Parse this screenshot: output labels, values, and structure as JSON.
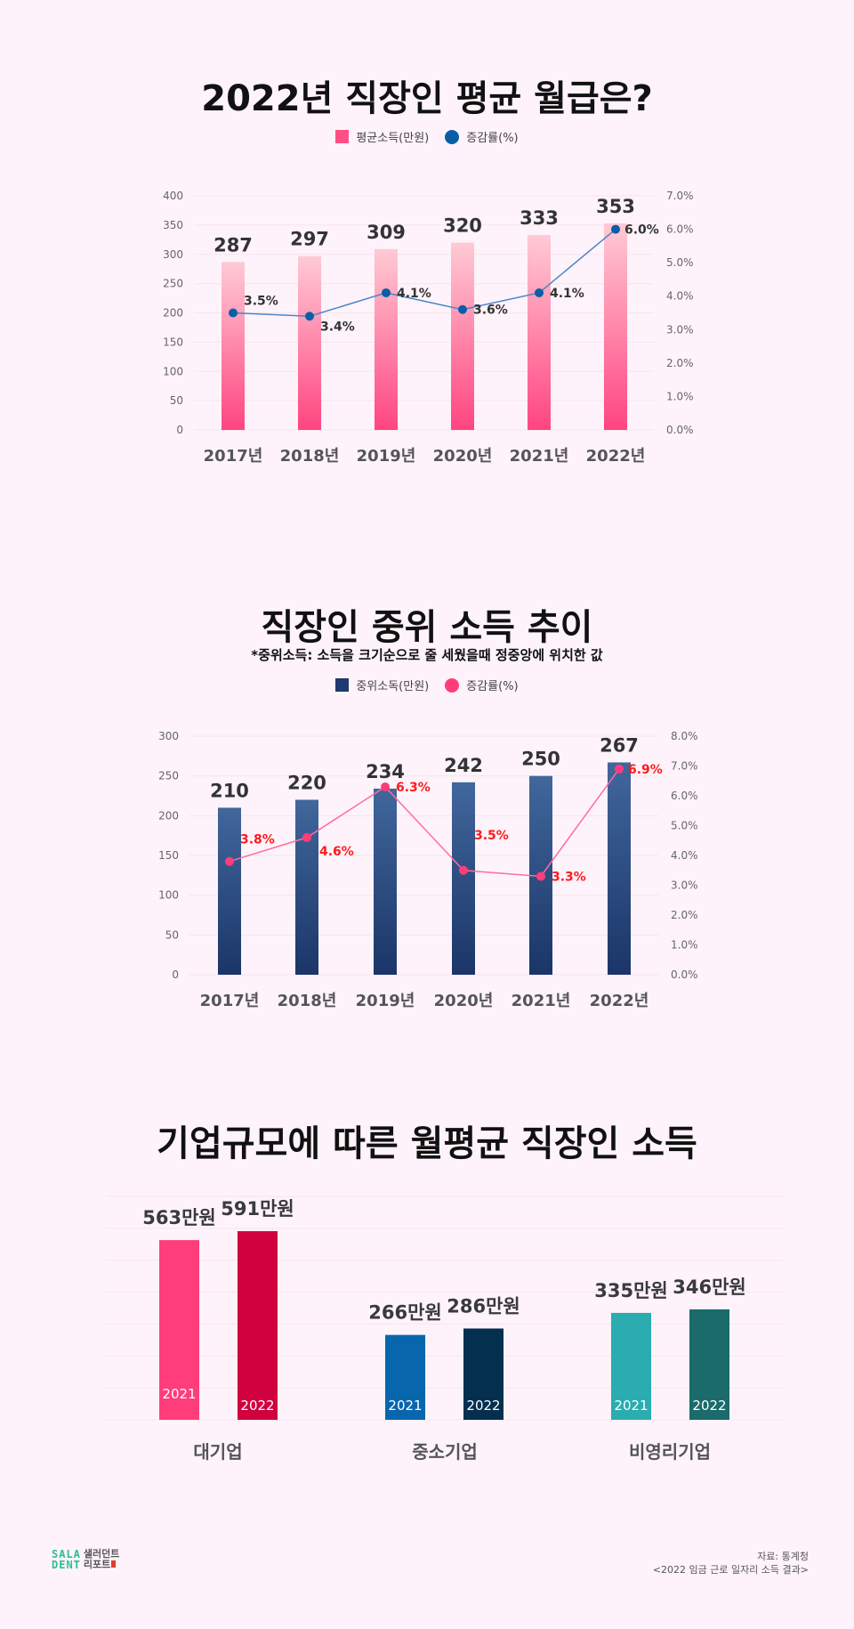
{
  "colors": {
    "background": "#fef3fa",
    "avg_bar_top": "#ffcad5",
    "avg_bar_bottom": "#ff4580",
    "avg_line": "#4a86c8",
    "avg_point": "#0a5ea8",
    "median_bar_top": "#41679c",
    "median_bar_bottom": "#1b3568",
    "median_line": "#ff6d9c",
    "median_point": "#ff3d7a",
    "median_pct_label": "#ff1a1a"
  },
  "chart_data": [
    {
      "type": "bar",
      "title": "2022년 직장인 평균 월급은?",
      "categories": [
        "2017년",
        "2018년",
        "2019년",
        "2020년",
        "2021년",
        "2022년"
      ],
      "series": [
        {
          "name": "평균소득(만원)",
          "type": "bar",
          "axis": "left",
          "values": [
            287,
            297,
            309,
            320,
            333,
            353
          ],
          "labels": [
            "287",
            "297",
            "309",
            "320",
            "333",
            "353"
          ]
        },
        {
          "name": "증감률(%)",
          "type": "line",
          "axis": "right",
          "values": [
            3.5,
            3.4,
            4.1,
            3.6,
            4.1,
            6.0
          ],
          "labels": [
            "3.5%",
            "3.4%",
            "4.1%",
            "3.6%",
            "4.1%",
            "6.0%"
          ]
        }
      ],
      "ylim": [
        0,
        400
      ],
      "yticks": [
        "0",
        "50",
        "100",
        "150",
        "200",
        "250",
        "300",
        "350",
        "400"
      ],
      "y2lim": [
        0,
        7
      ],
      "y2ticks": [
        "0.0%",
        "1.0%",
        "2.0%",
        "3.0%",
        "4.0%",
        "5.0%",
        "6.0%",
        "7.0%"
      ],
      "grid": true,
      "legend": "top-center"
    },
    {
      "type": "bar",
      "title": "직장인 중위 소득 추이",
      "subtitle": "*중위소득: 소득을 크기순으로 줄 세웠을때 정중앙에 위치한 값",
      "categories": [
        "2017년",
        "2018년",
        "2019년",
        "2020년",
        "2021년",
        "2022년"
      ],
      "series": [
        {
          "name": "중위소독(만원)",
          "type": "bar",
          "axis": "left",
          "values": [
            210,
            220,
            234,
            242,
            250,
            267
          ],
          "labels": [
            "210",
            "220",
            "234",
            "242",
            "250",
            "267"
          ]
        },
        {
          "name": "증감률(%)",
          "type": "line",
          "axis": "right",
          "values": [
            3.8,
            4.6,
            6.3,
            3.5,
            3.3,
            6.9
          ],
          "labels": [
            "3.8%",
            "4.6%",
            "6.3%",
            "3.5%",
            "3.3%",
            "6.9%"
          ]
        }
      ],
      "ylim": [
        0,
        300
      ],
      "yticks": [
        "0",
        "50",
        "100",
        "150",
        "200",
        "250",
        "300"
      ],
      "y2lim": [
        0,
        8
      ],
      "y2ticks": [
        "0.0%",
        "1.0%",
        "2.0%",
        "3.0%",
        "4.0%",
        "5.0%",
        "6.0%",
        "7.0%",
        "8.0%"
      ],
      "grid": true,
      "legend": "top-center"
    },
    {
      "type": "bar",
      "title": "기업규모에 따른 월평균 직장인 소득",
      "categories": [
        "대기업",
        "중소기업",
        "비영리기업"
      ],
      "series": [
        {
          "name": "2021",
          "values": [
            563,
            266,
            335
          ],
          "labels": [
            "563만원",
            "266만원",
            "335만원"
          ],
          "colors": [
            "#ff3d7a",
            "#0866ad",
            "#2aacb0"
          ]
        },
        {
          "name": "2022",
          "values": [
            591,
            286,
            346
          ],
          "labels": [
            "591만원",
            "286만원",
            "346만원"
          ],
          "colors": [
            "#d1003f",
            "#042f4f",
            "#1b6a6c"
          ]
        }
      ],
      "ylim": [
        0,
        700
      ],
      "grid": true
    }
  ],
  "footer": {
    "logo_en_line1": "SALA",
    "logo_en_line2": "DENT",
    "logo_ko_line1": "샐러던트",
    "logo_ko_line2": "리포트",
    "source_line1": "자료: 통계청",
    "source_line2": "<2022 임금 근로 일자리 소득 결과>"
  }
}
